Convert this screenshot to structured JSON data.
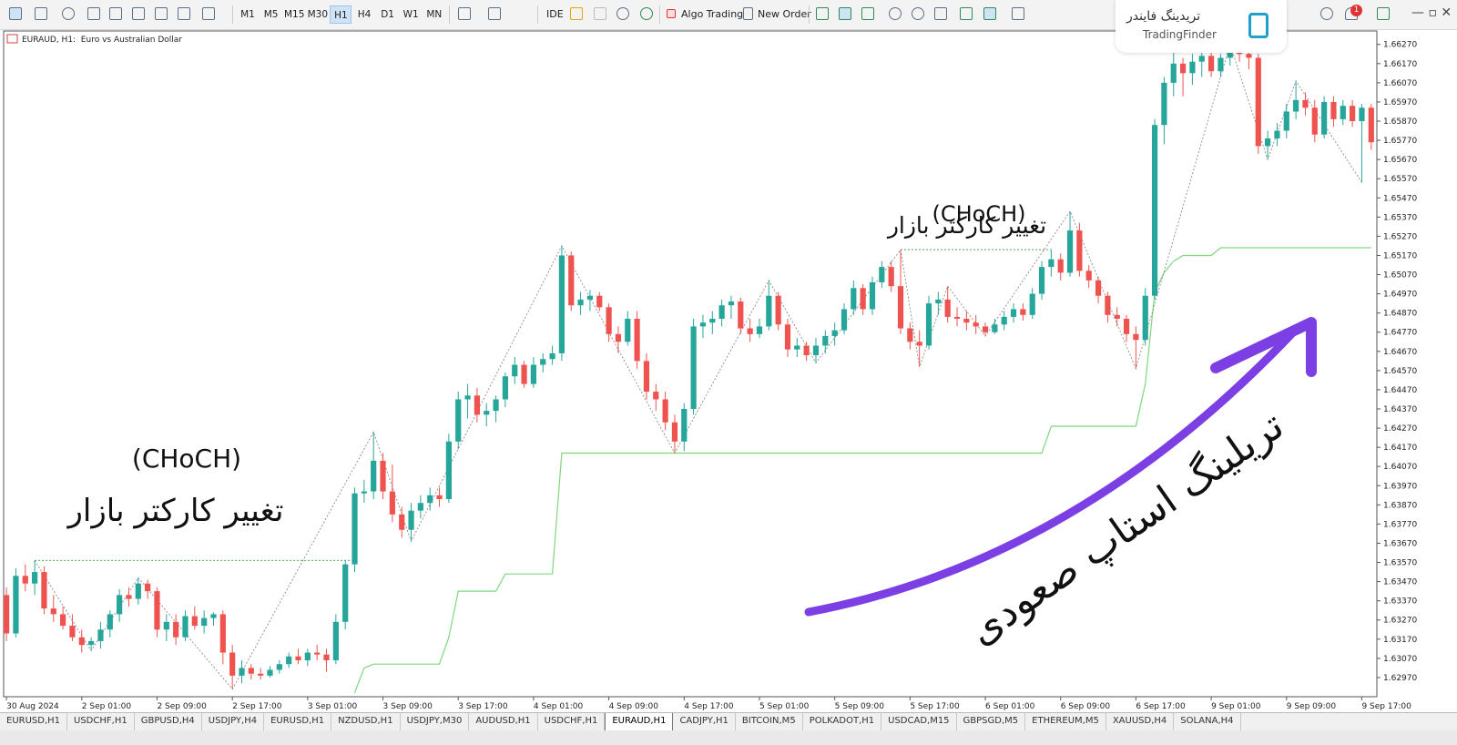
{
  "toolbar": {
    "timeframes": [
      "M1",
      "M5",
      "M15",
      "M30",
      "H1",
      "H4",
      "D1",
      "W1",
      "MN"
    ],
    "active_timeframe": 4,
    "ide": "IDE",
    "algo_trading": "Algo Trading",
    "new_order": "New Order",
    "notification_count": "1"
  },
  "logo": {
    "persian": "تریدینگ فایندر",
    "latin": "TradingFinder"
  },
  "chart_data": {
    "type": "candlestick",
    "title": "EURAUD, H1:  Euro vs Australian Dollar",
    "bull_color": "#26a69a",
    "bear_color": "#ef5350",
    "trailing_color": "#7fd67f",
    "zigzag_color": "#8a8a8a",
    "choch_color": "#4caf50",
    "grid": false,
    "xlim": [
      -0.3,
      145.6
    ],
    "ylim": [
      1.6287,
      1.6634
    ],
    "xticks": [
      {
        "value": 0,
        "label": "30 Aug 2024"
      },
      {
        "value": 8,
        "label": "2 Sep 01:00"
      },
      {
        "value": 16,
        "label": "2 Sep 09:00"
      },
      {
        "value": 24,
        "label": "2 Sep 17:00"
      },
      {
        "value": 32,
        "label": "3 Sep 01:00"
      },
      {
        "value": 40,
        "label": "3 Sep 09:00"
      },
      {
        "value": 48,
        "label": "3 Sep 17:00"
      },
      {
        "value": 56,
        "label": "4 Sep 01:00"
      },
      {
        "value": 64,
        "label": "4 Sep 09:00"
      },
      {
        "value": 72,
        "label": "4 Sep 17:00"
      },
      {
        "value": 80,
        "label": "5 Sep 01:00"
      },
      {
        "value": 88,
        "label": "5 Sep 09:00"
      },
      {
        "value": 96,
        "label": "5 Sep 17:00"
      },
      {
        "value": 104,
        "label": "6 Sep 01:00"
      },
      {
        "value": 112,
        "label": "6 Sep 09:00"
      },
      {
        "value": 120,
        "label": "6 Sep 17:00"
      },
      {
        "value": 128,
        "label": "9 Sep 01:00"
      },
      {
        "value": 136,
        "label": "9 Sep 09:00"
      },
      {
        "value": 144,
        "label": "9 Sep 17:00"
      }
    ],
    "yticks": [
      {
        "value": 1.6627,
        "label": "1.66270"
      },
      {
        "value": 1.6617,
        "label": "1.66170"
      },
      {
        "value": 1.6607,
        "label": "1.66070"
      },
      {
        "value": 1.6597,
        "label": "1.65970"
      },
      {
        "value": 1.6587,
        "label": "1.65870"
      },
      {
        "value": 1.6577,
        "label": "1.65770"
      },
      {
        "value": 1.6567,
        "label": "1.65670"
      },
      {
        "value": 1.6557,
        "label": "1.65570"
      },
      {
        "value": 1.6547,
        "label": "1.65470"
      },
      {
        "value": 1.6537,
        "label": "1.65370"
      },
      {
        "value": 1.6527,
        "label": "1.65270"
      },
      {
        "value": 1.6517,
        "label": "1.65170"
      },
      {
        "value": 1.6507,
        "label": "1.65070"
      },
      {
        "value": 1.6497,
        "label": "1.64970"
      },
      {
        "value": 1.6487,
        "label": "1.64870"
      },
      {
        "value": 1.6477,
        "label": "1.64770"
      },
      {
        "value": 1.6467,
        "label": "1.64670"
      },
      {
        "value": 1.6457,
        "label": "1.64570"
      },
      {
        "value": 1.6447,
        "label": "1.64470"
      },
      {
        "value": 1.6437,
        "label": "1.64370"
      },
      {
        "value": 1.6427,
        "label": "1.64270"
      },
      {
        "value": 1.6417,
        "label": "1.64170"
      },
      {
        "value": 1.6407,
        "label": "1.64070"
      },
      {
        "value": 1.6397,
        "label": "1.63970"
      },
      {
        "value": 1.6387,
        "label": "1.63870"
      },
      {
        "value": 1.6377,
        "label": "1.63770"
      },
      {
        "value": 1.6367,
        "label": "1.63670"
      },
      {
        "value": 1.6357,
        "label": "1.63570"
      },
      {
        "value": 1.6347,
        "label": "1.63470"
      },
      {
        "value": 1.6337,
        "label": "1.63370"
      },
      {
        "value": 1.6327,
        "label": "1.63270"
      },
      {
        "value": 1.6317,
        "label": "1.63170"
      },
      {
        "value": 1.6307,
        "label": "1.63070"
      },
      {
        "value": 1.6297,
        "label": "1.62970"
      }
    ],
    "candles": [
      [
        1.634,
        1.6344,
        1.6316,
        1.632
      ],
      [
        1.632,
        1.6354,
        1.6318,
        1.635
      ],
      [
        1.635,
        1.6356,
        1.6342,
        1.6346
      ],
      [
        1.6346,
        1.6358,
        1.634,
        1.6352
      ],
      [
        1.6352,
        1.6355,
        1.633,
        1.6333
      ],
      [
        1.6333,
        1.634,
        1.6326,
        1.633
      ],
      [
        1.633,
        1.6334,
        1.6322,
        1.6324
      ],
      [
        1.6324,
        1.633,
        1.6316,
        1.6318
      ],
      [
        1.6318,
        1.6322,
        1.631,
        1.6314
      ],
      [
        1.6314,
        1.6318,
        1.6311,
        1.6316
      ],
      [
        1.6316,
        1.6326,
        1.6312,
        1.6322
      ],
      [
        1.6322,
        1.6332,
        1.6318,
        1.633
      ],
      [
        1.633,
        1.6343,
        1.6326,
        1.634
      ],
      [
        1.634,
        1.6344,
        1.6334,
        1.6338
      ],
      [
        1.6338,
        1.6349,
        1.6335,
        1.6346
      ],
      [
        1.6346,
        1.6348,
        1.6338,
        1.6342
      ],
      [
        1.6342,
        1.6344,
        1.6318,
        1.6322
      ],
      [
        1.6322,
        1.633,
        1.6316,
        1.6326
      ],
      [
        1.6326,
        1.633,
        1.6314,
        1.6318
      ],
      [
        1.6318,
        1.6332,
        1.6316,
        1.6329
      ],
      [
        1.6329,
        1.6334,
        1.6322,
        1.6324
      ],
      [
        1.6324,
        1.6332,
        1.632,
        1.6328
      ],
      [
        1.6328,
        1.6331,
        1.6324,
        1.633
      ],
      [
        1.633,
        1.6332,
        1.6304,
        1.631
      ],
      [
        1.631,
        1.6314,
        1.6291,
        1.6298
      ],
      [
        1.6298,
        1.6306,
        1.6294,
        1.6302
      ],
      [
        1.6302,
        1.6304,
        1.6296,
        1.6299
      ],
      [
        1.6299,
        1.6302,
        1.6296,
        1.6298
      ],
      [
        1.6298,
        1.6303,
        1.6297,
        1.6301
      ],
      [
        1.6301,
        1.6306,
        1.6299,
        1.6304
      ],
      [
        1.6304,
        1.631,
        1.6302,
        1.6308
      ],
      [
        1.6308,
        1.6312,
        1.6304,
        1.6306
      ],
      [
        1.6306,
        1.6312,
        1.6303,
        1.631
      ],
      [
        1.631,
        1.6314,
        1.6306,
        1.6309
      ],
      [
        1.6309,
        1.6312,
        1.63,
        1.6306
      ],
      [
        1.6306,
        1.633,
        1.6304,
        1.6326
      ],
      [
        1.6326,
        1.6358,
        1.6322,
        1.6356
      ],
      [
        1.6356,
        1.6396,
        1.6352,
        1.6393
      ],
      [
        1.6393,
        1.64,
        1.6388,
        1.6394
      ],
      [
        1.6394,
        1.6425,
        1.639,
        1.641
      ],
      [
        1.641,
        1.6414,
        1.639,
        1.6394
      ],
      [
        1.6394,
        1.6408,
        1.6378,
        1.6382
      ],
      [
        1.6382,
        1.6386,
        1.637,
        1.6374
      ],
      [
        1.6374,
        1.6388,
        1.6368,
        1.6384
      ],
      [
        1.6384,
        1.6392,
        1.638,
        1.6388
      ],
      [
        1.6388,
        1.6396,
        1.6384,
        1.6392
      ],
      [
        1.6392,
        1.6396,
        1.6386,
        1.639
      ],
      [
        1.639,
        1.6424,
        1.6388,
        1.642
      ],
      [
        1.642,
        1.6446,
        1.6416,
        1.6442
      ],
      [
        1.6442,
        1.645,
        1.6432,
        1.6444
      ],
      [
        1.6444,
        1.6448,
        1.643,
        1.6434
      ],
      [
        1.6434,
        1.644,
        1.6428,
        1.6436
      ],
      [
        1.6436,
        1.6444,
        1.643,
        1.6442
      ],
      [
        1.6442,
        1.6456,
        1.6438,
        1.6454
      ],
      [
        1.6454,
        1.6464,
        1.645,
        1.646
      ],
      [
        1.646,
        1.6462,
        1.6448,
        1.645
      ],
      [
        1.645,
        1.6464,
        1.6448,
        1.646
      ],
      [
        1.646,
        1.6466,
        1.6456,
        1.6463
      ],
      [
        1.6463,
        1.647,
        1.646,
        1.6466
      ],
      [
        1.6466,
        1.6522,
        1.6462,
        1.6517
      ],
      [
        1.6517,
        1.6519,
        1.6488,
        1.6491
      ],
      [
        1.6491,
        1.6498,
        1.6486,
        1.6494
      ],
      [
        1.6494,
        1.6499,
        1.6488,
        1.6496
      ],
      [
        1.6496,
        1.6498,
        1.6488,
        1.649
      ],
      [
        1.649,
        1.6492,
        1.6472,
        1.6476
      ],
      [
        1.6476,
        1.648,
        1.6466,
        1.6472
      ],
      [
        1.6472,
        1.6488,
        1.647,
        1.6484
      ],
      [
        1.6484,
        1.6488,
        1.6458,
        1.6462
      ],
      [
        1.6462,
        1.6466,
        1.6442,
        1.6446
      ],
      [
        1.6446,
        1.645,
        1.6436,
        1.6442
      ],
      [
        1.6442,
        1.6446,
        1.6426,
        1.643
      ],
      [
        1.643,
        1.6434,
        1.6414,
        1.642
      ],
      [
        1.642,
        1.644,
        1.6415,
        1.6437
      ],
      [
        1.6437,
        1.6484,
        1.6434,
        1.648
      ],
      [
        1.648,
        1.6486,
        1.6474,
        1.6482
      ],
      [
        1.6482,
        1.6488,
        1.6476,
        1.6484
      ],
      [
        1.6484,
        1.6494,
        1.648,
        1.6491
      ],
      [
        1.6491,
        1.6496,
        1.6484,
        1.6493
      ],
      [
        1.6493,
        1.6495,
        1.6476,
        1.6479
      ],
      [
        1.6479,
        1.6484,
        1.6472,
        1.6476
      ],
      [
        1.6476,
        1.6484,
        1.6474,
        1.648
      ],
      [
        1.648,
        1.6504,
        1.6478,
        1.6496
      ],
      [
        1.6496,
        1.6498,
        1.6478,
        1.6481
      ],
      [
        1.6481,
        1.6484,
        1.6464,
        1.6468
      ],
      [
        1.6468,
        1.6474,
        1.6464,
        1.647
      ],
      [
        1.647,
        1.6472,
        1.6462,
        1.6465
      ],
      [
        1.6465,
        1.6474,
        1.6461,
        1.647
      ],
      [
        1.647,
        1.6478,
        1.6466,
        1.6475
      ],
      [
        1.6475,
        1.6482,
        1.647,
        1.6478
      ],
      [
        1.6478,
        1.6492,
        1.6476,
        1.6489
      ],
      [
        1.6489,
        1.6504,
        1.6486,
        1.65
      ],
      [
        1.65,
        1.6502,
        1.6486,
        1.6489
      ],
      [
        1.6489,
        1.6506,
        1.6486,
        1.6503
      ],
      [
        1.6503,
        1.6514,
        1.65,
        1.6511
      ],
      [
        1.6511,
        1.6514,
        1.6498,
        1.6501
      ],
      [
        1.6501,
        1.652,
        1.6476,
        1.6479
      ],
      [
        1.6479,
        1.6482,
        1.6468,
        1.6472
      ],
      [
        1.6472,
        1.6478,
        1.6459,
        1.647
      ],
      [
        1.647,
        1.6496,
        1.6468,
        1.6492
      ],
      [
        1.6492,
        1.6498,
        1.6486,
        1.6494
      ],
      [
        1.6494,
        1.6501,
        1.6482,
        1.6485
      ],
      [
        1.6485,
        1.649,
        1.648,
        1.6484
      ],
      [
        1.6484,
        1.6488,
        1.6478,
        1.6482
      ],
      [
        1.6482,
        1.6486,
        1.6476,
        1.648
      ],
      [
        1.648,
        1.6482,
        1.6475,
        1.6477
      ],
      [
        1.6477,
        1.6484,
        1.6476,
        1.6481
      ],
      [
        1.6481,
        1.6488,
        1.6478,
        1.6485
      ],
      [
        1.6485,
        1.6492,
        1.6482,
        1.6489
      ],
      [
        1.6489,
        1.6492,
        1.6483,
        1.6486
      ],
      [
        1.6486,
        1.65,
        1.6484,
        1.6497
      ],
      [
        1.6497,
        1.6514,
        1.6494,
        1.6511
      ],
      [
        1.6511,
        1.652,
        1.6506,
        1.6515
      ],
      [
        1.6515,
        1.6518,
        1.6504,
        1.6508
      ],
      [
        1.6508,
        1.654,
        1.6506,
        1.653
      ],
      [
        1.653,
        1.6534,
        1.6506,
        1.6509
      ],
      [
        1.6509,
        1.6512,
        1.65,
        1.6504
      ],
      [
        1.6504,
        1.6506,
        1.6492,
        1.6496
      ],
      [
        1.6496,
        1.6498,
        1.6482,
        1.6486
      ],
      [
        1.6486,
        1.649,
        1.648,
        1.6484
      ],
      [
        1.6484,
        1.6486,
        1.6472,
        1.6476
      ],
      [
        1.6476,
        1.648,
        1.6458,
        1.6473
      ],
      [
        1.6473,
        1.65,
        1.647,
        1.6496
      ],
      [
        1.6496,
        1.6588,
        1.6494,
        1.6585
      ],
      [
        1.6585,
        1.661,
        1.6575,
        1.6607
      ],
      [
        1.6607,
        1.6624,
        1.66,
        1.6617
      ],
      [
        1.6617,
        1.662,
        1.66,
        1.6612
      ],
      [
        1.6612,
        1.6622,
        1.6606,
        1.6618
      ],
      [
        1.6618,
        1.6624,
        1.661,
        1.6621
      ],
      [
        1.6621,
        1.6623,
        1.661,
        1.6613
      ],
      [
        1.6613,
        1.6622,
        1.661,
        1.662
      ],
      [
        1.662,
        1.6627,
        1.6616,
        1.6625
      ],
      [
        1.6625,
        1.6626,
        1.6618,
        1.6622
      ],
      [
        1.6622,
        1.6625,
        1.6614,
        1.662
      ],
      [
        1.662,
        1.6622,
        1.657,
        1.6574
      ],
      [
        1.6574,
        1.6582,
        1.6567,
        1.6578
      ],
      [
        1.6578,
        1.6586,
        1.6574,
        1.6582
      ],
      [
        1.6582,
        1.6596,
        1.6578,
        1.6592
      ],
      [
        1.6592,
        1.6608,
        1.6588,
        1.6598
      ],
      [
        1.6598,
        1.6602,
        1.659,
        1.6594
      ],
      [
        1.6594,
        1.6598,
        1.6576,
        1.658
      ],
      [
        1.658,
        1.66,
        1.6578,
        1.6597
      ],
      [
        1.6597,
        1.66,
        1.6584,
        1.6588
      ],
      [
        1.6588,
        1.6598,
        1.6585,
        1.6595
      ],
      [
        1.6595,
        1.6598,
        1.6584,
        1.6587
      ],
      [
        1.6587,
        1.6596,
        1.6555,
        1.6594
      ],
      [
        1.6594,
        1.6596,
        1.6572,
        1.6576
      ]
    ],
    "trailing_stop": [
      null,
      null,
      null,
      null,
      null,
      null,
      null,
      null,
      null,
      null,
      null,
      null,
      null,
      null,
      null,
      null,
      null,
      null,
      null,
      null,
      null,
      null,
      null,
      null,
      null,
      null,
      null,
      null,
      null,
      null,
      null,
      null,
      null,
      null,
      null,
      null,
      null,
      1.6289,
      1.6302,
      1.6304,
      1.6304,
      1.6304,
      1.6304,
      1.6304,
      1.6304,
      1.6304,
      1.6304,
      1.6318,
      1.6342,
      1.6342,
      1.6342,
      1.6342,
      1.6342,
      1.6351,
      1.6351,
      1.6351,
      1.6351,
      1.6351,
      1.6351,
      1.6414,
      1.6414,
      1.6414,
      1.6414,
      1.6414,
      1.6414,
      1.6414,
      1.6414,
      1.6414,
      1.6414,
      1.6414,
      1.6414,
      1.6414,
      1.6414,
      1.6414,
      1.6414,
      1.6414,
      1.6414,
      1.6414,
      1.6414,
      1.6414,
      1.6414,
      1.6414,
      1.6414,
      1.6414,
      1.6414,
      1.6414,
      1.6414,
      1.6414,
      1.6414,
      1.6414,
      1.6414,
      1.6414,
      1.6414,
      1.6414,
      1.6414,
      1.6414,
      1.6414,
      1.6414,
      1.6414,
      1.6414,
      1.6414,
      1.6414,
      1.6414,
      1.6414,
      1.6414,
      1.6414,
      1.6414,
      1.6414,
      1.6414,
      1.6414,
      1.6414,
      1.6428,
      1.6428,
      1.6428,
      1.6428,
      1.6428,
      1.6428,
      1.6428,
      1.6428,
      1.6428,
      1.6428,
      1.645,
      1.6498,
      1.6508,
      1.6514,
      1.6517,
      1.6517,
      1.6517,
      1.6517,
      1.6521,
      1.6521,
      1.6521,
      1.6521,
      1.6521,
      1.6521,
      1.6521,
      1.6521,
      1.6521,
      1.6521,
      1.6521,
      1.6521,
      1.6521,
      1.6521,
      1.6521,
      1.6521,
      1.6521
    ],
    "zigzag": {
      "x": [
        3,
        9,
        14,
        24,
        39,
        43,
        59,
        71,
        81,
        86,
        95,
        97,
        100,
        104,
        113,
        120,
        130,
        134,
        137,
        144
      ],
      "y": [
        1.6358,
        1.6311,
        1.6349,
        1.6291,
        1.6425,
        1.6368,
        1.6522,
        1.6414,
        1.6504,
        1.6461,
        1.652,
        1.6459,
        1.6501,
        1.6475,
        1.654,
        1.6458,
        1.6627,
        1.6567,
        1.6608,
        1.6555
      ]
    },
    "choch_levels": [
      {
        "value": 1.6358,
        "from": 3,
        "to": 37
      },
      {
        "value": 1.652,
        "from": 95,
        "to": 111
      }
    ],
    "annotations": [
      "(CHoCH)",
      "تغییر کارکتر بازار",
      "(CHoCH)",
      "تغییر کارکتر بازار",
      "تریلینگ استاپ صعودی"
    ]
  },
  "tabs": {
    "items": [
      "EURUSD,H1",
      "USDCHF,H1",
      "GBPUSD,H4",
      "USDJPY,H4",
      "EURUSD,H1",
      "NZDUSD,H1",
      "USDJPY,M30",
      "AUDUSD,H1",
      "USDCHF,H1",
      "EURAUD,H1",
      "CADJPY,H1",
      "BITCOIN,M5",
      "POLKADOT,H1",
      "USDCAD,M15",
      "GBPSGD,M5",
      "ETHEREUM,M5",
      "XAUUSD,H4",
      "SOLANA,H4"
    ],
    "active": 9
  }
}
